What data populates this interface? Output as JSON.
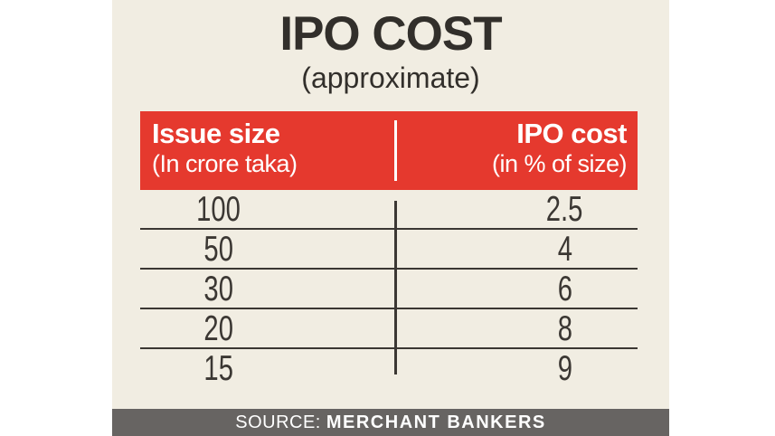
{
  "title": "IPO COST",
  "subtitle": "(approximate)",
  "table": {
    "columns": [
      {
        "label": "Issue size",
        "sublabel": "(In crore taka)"
      },
      {
        "label": "IPO cost",
        "sublabel": "(in % of size)"
      }
    ],
    "rows": [
      {
        "issue_size": "100",
        "ipo_cost": "2.5"
      },
      {
        "issue_size": "50",
        "ipo_cost": "4"
      },
      {
        "issue_size": "30",
        "ipo_cost": "6"
      },
      {
        "issue_size": "20",
        "ipo_cost": "8"
      },
      {
        "issue_size": "15",
        "ipo_cost": "9"
      }
    ]
  },
  "source": {
    "prefix": "SOURCE:",
    "name": "MERCHANT BANKERS"
  },
  "colors": {
    "header-red": "#e5392e",
    "panel-bg": "#f1ede2",
    "bar-gray": "#676462",
    "ink": "#3b3733",
    "title-ink": "#322f2b"
  },
  "chart_data": {
    "type": "table",
    "title": "IPO COST",
    "subtitle": "(approximate)",
    "columns": [
      "Issue size (In crore taka)",
      "IPO cost (in % of size)"
    ],
    "categories": [
      100,
      50,
      30,
      20,
      15
    ],
    "values": [
      2.5,
      4,
      6,
      8,
      9
    ],
    "xlabel": "Issue size (In crore taka)",
    "ylabel": "IPO cost (in % of size)",
    "source": "MERCHANT BANKERS",
    "legend": false,
    "grid": "horizontal-rules"
  }
}
